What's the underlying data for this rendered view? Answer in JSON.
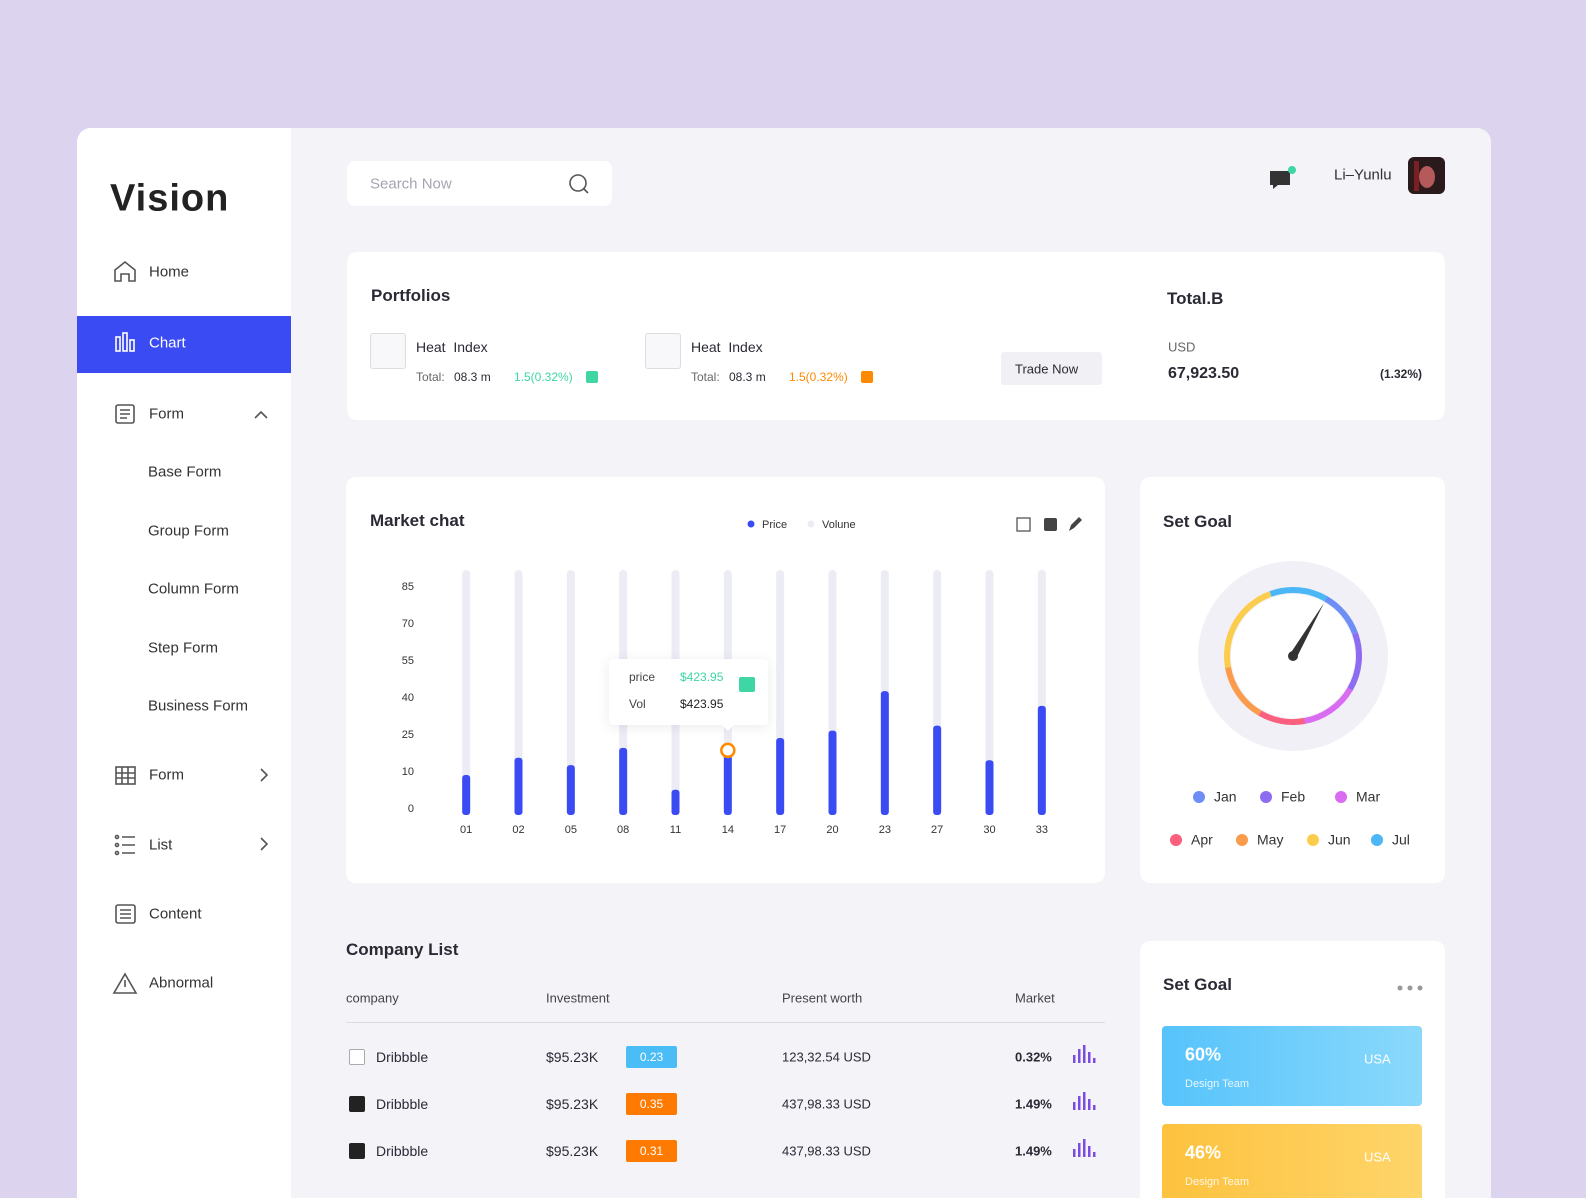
{
  "sidebar": {
    "logo": "Vision",
    "menu": [
      "Home",
      "Chart",
      "Form",
      "Base Form",
      "Group Form",
      "Column Form",
      "Step Form",
      "Business Form",
      "Form",
      "List",
      "Content",
      "Abnormal"
    ]
  },
  "header": {
    "search_placeholder": "Search Now",
    "user": "Li–Yunlu"
  },
  "portfolios": {
    "title": "Portfolios",
    "items": [
      {
        "name": "Heat  Index",
        "total_label": "Total:",
        "total": "08.3 m",
        "change": "1.5(0.32%)",
        "color": "#3ed6a4"
      },
      {
        "name": "Heat  Index",
        "total_label": "Total:",
        "total": "08.3 m",
        "change": "1.5(0.32%)",
        "color": "#ff8a00"
      }
    ],
    "button": "Trade Now",
    "total_title": "Total.B",
    "currency": "USD",
    "amount": "67,923.50",
    "change": "(1.32%)"
  },
  "market_chart": {
    "type": "bar",
    "title": "Market chat",
    "legend": [
      {
        "name": "Price",
        "color": "#3a4bf3"
      },
      {
        "name": "Volune",
        "color": "#ececf5"
      }
    ],
    "categories": [
      "01",
      "02",
      "05",
      "08",
      "11",
      "14",
      "17",
      "20",
      "23",
      "27",
      "30",
      "33"
    ],
    "values": [
      10,
      17,
      14,
      21,
      6,
      20,
      25,
      28,
      44,
      30,
      16,
      38
    ],
    "color": "#3a4bf3",
    "ylim": [
      0,
      85
    ],
    "yticks": [
      0,
      10,
      25,
      40,
      55,
      70,
      85
    ],
    "tooltip": {
      "price_label": "price",
      "price": "$423.95",
      "vol_label": "Vol",
      "vol": "$423.95"
    }
  },
  "set_goal": {
    "title": "Set Goal",
    "legend": [
      {
        "name": "Jan",
        "color": "#6d8ef5"
      },
      {
        "name": "Feb",
        "color": "#8d6cf0"
      },
      {
        "name": "Mar",
        "color": "#d96cf0"
      },
      {
        "name": "Apr",
        "color": "#fb5f7e"
      },
      {
        "name": "May",
        "color": "#fb9c4d"
      },
      {
        "name": "Jun",
        "color": "#fccd4d"
      },
      {
        "name": "Jul",
        "color": "#4bb7f5"
      }
    ]
  },
  "company_list": {
    "title": "Company List",
    "columns": [
      "company",
      "Investment",
      "Present worth",
      "Market"
    ],
    "rows": [
      {
        "checked": false,
        "company": "Dribbble",
        "investment": "$95.23K",
        "rate": "0.23",
        "rate_color": "#4bbdf6",
        "present_worth": "123,32.54 USD",
        "market": "0.32%"
      },
      {
        "checked": true,
        "company": "Dribbble",
        "investment": "$95.23K",
        "rate": "0.35",
        "rate_color": "#ff7a00",
        "present_worth": "437,98.33 USD",
        "market": "1.49%"
      },
      {
        "checked": true,
        "company": "Dribbble",
        "investment": "$95.23K",
        "rate": "0.31",
        "rate_color": "#ff7a00",
        "present_worth": "437,98.33 USD",
        "market": "1.49%"
      }
    ]
  },
  "goal_cards": {
    "title": "Set Goal",
    "cards": [
      {
        "percent": "60%",
        "country": "USA",
        "team": "Design Team"
      },
      {
        "percent": "46%",
        "country": "USA",
        "team": "Design Team"
      }
    ]
  }
}
